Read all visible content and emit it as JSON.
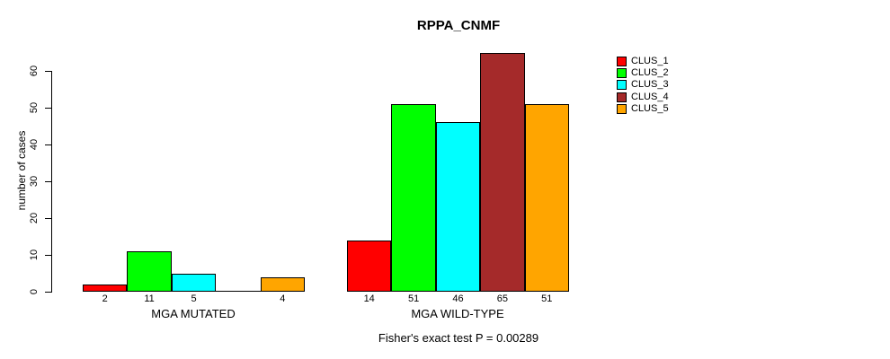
{
  "chart_data": {
    "type": "bar",
    "title": "RPPA_CNMF",
    "ylabel": "number of cases",
    "xlabel": "",
    "ylim": [
      0,
      60
    ],
    "yticks": [
      0,
      10,
      20,
      30,
      40,
      50,
      60
    ],
    "grid": false,
    "legend_position": "right-outside",
    "categories": [
      "MGA MUTATED",
      "MGA WILD-TYPE"
    ],
    "series": [
      {
        "name": "CLUS_1",
        "color": "#FF0000",
        "values": [
          2,
          14
        ]
      },
      {
        "name": "CLUS_2",
        "color": "#00FF00",
        "values": [
          11,
          51
        ]
      },
      {
        "name": "CLUS_3",
        "color": "#00FFFF",
        "values": [
          5,
          46
        ]
      },
      {
        "name": "CLUS_4",
        "color": "#A52A2A",
        "values": [
          0,
          65
        ]
      },
      {
        "name": "CLUS_5",
        "color": "#FFA500",
        "values": [
          4,
          51
        ]
      }
    ],
    "bar_value_labels": [
      [
        "2",
        "11",
        "5",
        "",
        "4"
      ],
      [
        "14",
        "51",
        "46",
        "65",
        "51"
      ]
    ],
    "annotation": "Fisher's exact test P = 0.00289",
    "bar_border_color": "#000000",
    "background_color": "#FFFFFF"
  }
}
